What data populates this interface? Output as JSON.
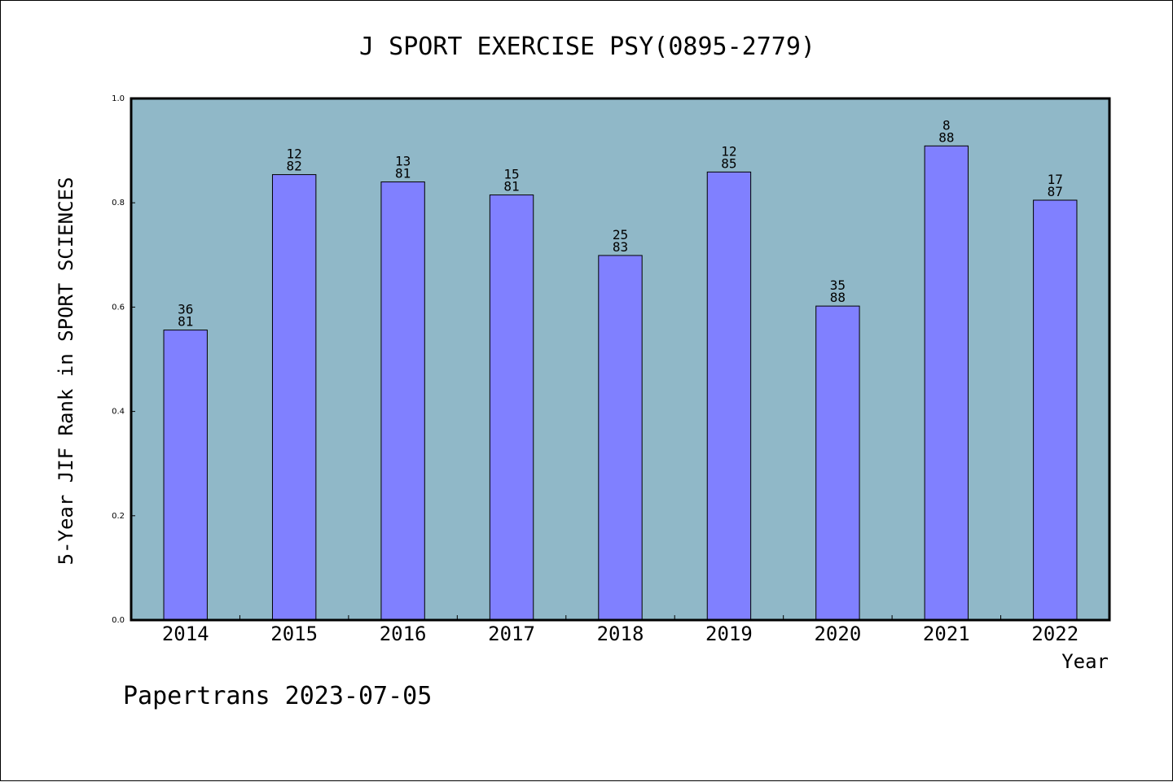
{
  "chart_data": {
    "type": "bar",
    "title": "J SPORT EXERCISE PSY(0895-2779)",
    "xlabel": "Year",
    "ylabel": "5-Year JIF Rank in SPORT SCIENCES",
    "ylim": [
      0,
      1.0
    ],
    "yticks": [
      "0.0",
      "0.2",
      "0.4",
      "0.6",
      "0.8",
      "1.0"
    ],
    "categories": [
      "2014",
      "2015",
      "2016",
      "2017",
      "2018",
      "2019",
      "2020",
      "2021",
      "2022"
    ],
    "values": [
      0.556,
      0.854,
      0.84,
      0.815,
      0.699,
      0.859,
      0.602,
      0.909,
      0.805
    ],
    "rank_labels": [
      {
        "rank": "36",
        "total": "81"
      },
      {
        "rank": "12",
        "total": "82"
      },
      {
        "rank": "13",
        "total": "81"
      },
      {
        "rank": "15",
        "total": "81"
      },
      {
        "rank": "25",
        "total": "83"
      },
      {
        "rank": "12",
        "total": "85"
      },
      {
        "rank": "35",
        "total": "88"
      },
      {
        "rank": "8",
        "total": "88"
      },
      {
        "rank": "17",
        "total": "87"
      }
    ],
    "grid": false,
    "legend": "none",
    "colors": {
      "plot_background": "#90b8c8",
      "bar_fill": "#8080ff",
      "bar_stroke": "#000000"
    }
  },
  "footer": {
    "text": "Papertrans 2023-07-05"
  }
}
